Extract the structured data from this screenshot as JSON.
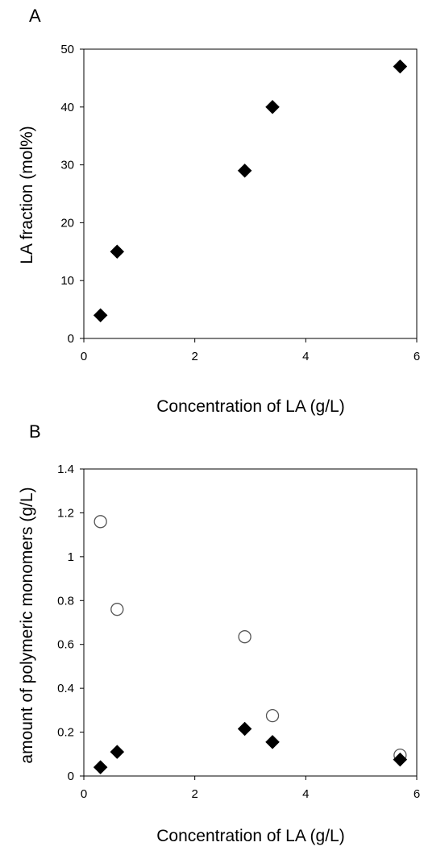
{
  "chart_data": [
    {
      "panel": "A",
      "type": "scatter",
      "xlabel": "Concentration of LA (g/L)",
      "ylabel": "LA fraction (mol%)",
      "xlim": [
        0,
        6
      ],
      "ylim": [
        0,
        50
      ],
      "xticks": [
        "0",
        "2",
        "4",
        "6"
      ],
      "yticks": [
        "0",
        "10",
        "20",
        "30",
        "40",
        "50"
      ],
      "series": [
        {
          "marker": "diamond-filled",
          "color": "#000000",
          "x": [
            0.3,
            0.6,
            2.9,
            3.4,
            5.7
          ],
          "y": [
            4,
            15,
            29,
            40,
            47
          ]
        }
      ]
    },
    {
      "panel": "B",
      "type": "scatter",
      "xlabel": "Concentration of LA (g/L)",
      "ylabel": "amount of polymeric monomers (g/L)",
      "xlim": [
        0,
        6
      ],
      "ylim": [
        0,
        1.4
      ],
      "xticks": [
        "0",
        "2",
        "4",
        "6"
      ],
      "yticks": [
        "0",
        "0.2",
        "0.4",
        "0.6",
        "0.8",
        "1",
        "1.2",
        "1.4"
      ],
      "series": [
        {
          "marker": "circle-open",
          "color": "#555555",
          "x": [
            0.3,
            0.6,
            2.9,
            3.4,
            5.7
          ],
          "y": [
            1.16,
            0.76,
            0.635,
            0.275,
            0.095
          ]
        },
        {
          "marker": "diamond-filled",
          "color": "#000000",
          "x": [
            0.3,
            0.6,
            2.9,
            3.4,
            5.7
          ],
          "y": [
            0.04,
            0.11,
            0.215,
            0.155,
            0.075
          ]
        }
      ]
    }
  ]
}
